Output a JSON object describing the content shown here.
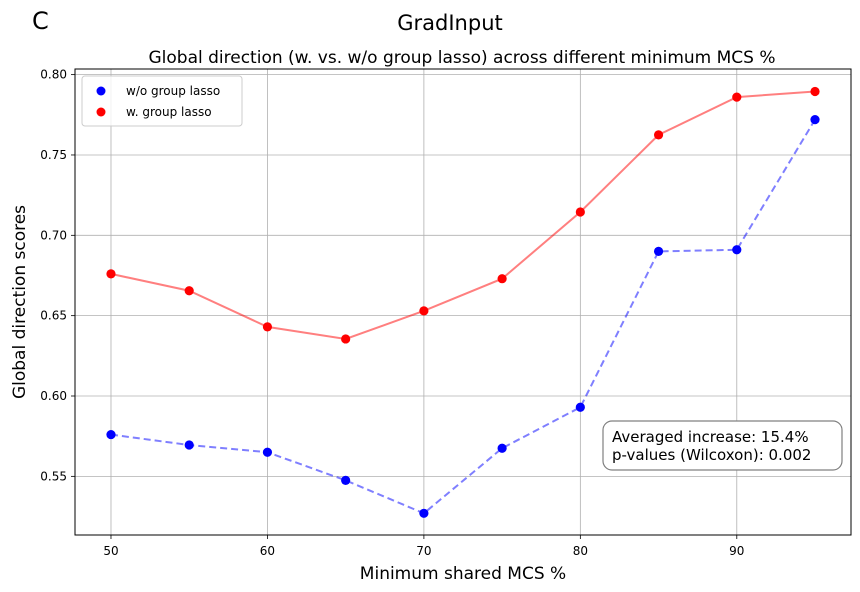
{
  "panel_letter": "C",
  "suptitle": "GradInput",
  "chart_data": {
    "type": "scatter",
    "title": "Global direction (w. vs. w/o group lasso) across different minimum MCS %",
    "xlabel": "Minimum shared MCS %",
    "ylabel": "Global direction scores",
    "xlim": [
      47.7,
      97.3
    ],
    "ylim": [
      0.5135,
      0.8035
    ],
    "xticks": [
      50,
      60,
      70,
      80,
      90
    ],
    "yticks": [
      0.55,
      0.6,
      0.65,
      0.7,
      0.75,
      0.8
    ],
    "ytick_labels": [
      "0.55",
      "0.60",
      "0.65",
      "0.70",
      "0.75",
      "0.80"
    ],
    "grid": true,
    "legend_position": "top-left",
    "x": [
      50,
      55,
      60,
      65,
      70,
      75,
      80,
      85,
      90,
      95
    ],
    "series": [
      {
        "name": "w/o group lasso",
        "values": [
          0.576,
          0.5695,
          0.565,
          0.5475,
          0.527,
          0.5675,
          0.593,
          0.69,
          0.691,
          0.772
        ],
        "marker_color": "#0000ff",
        "line_color": "#0000ff",
        "line_style": "dashed"
      },
      {
        "name": "w. group lasso",
        "values": [
          0.676,
          0.6655,
          0.643,
          0.6355,
          0.653,
          0.673,
          0.7145,
          0.7625,
          0.786,
          0.7895
        ],
        "marker_color": "#ff0000",
        "line_color": "#ff0000",
        "line_style": "solid"
      }
    ],
    "annotation": {
      "lines": [
        "Averaged increase: 15.4%",
        "p-values (Wilcoxon): 0.002"
      ],
      "color": "#008000"
    }
  }
}
